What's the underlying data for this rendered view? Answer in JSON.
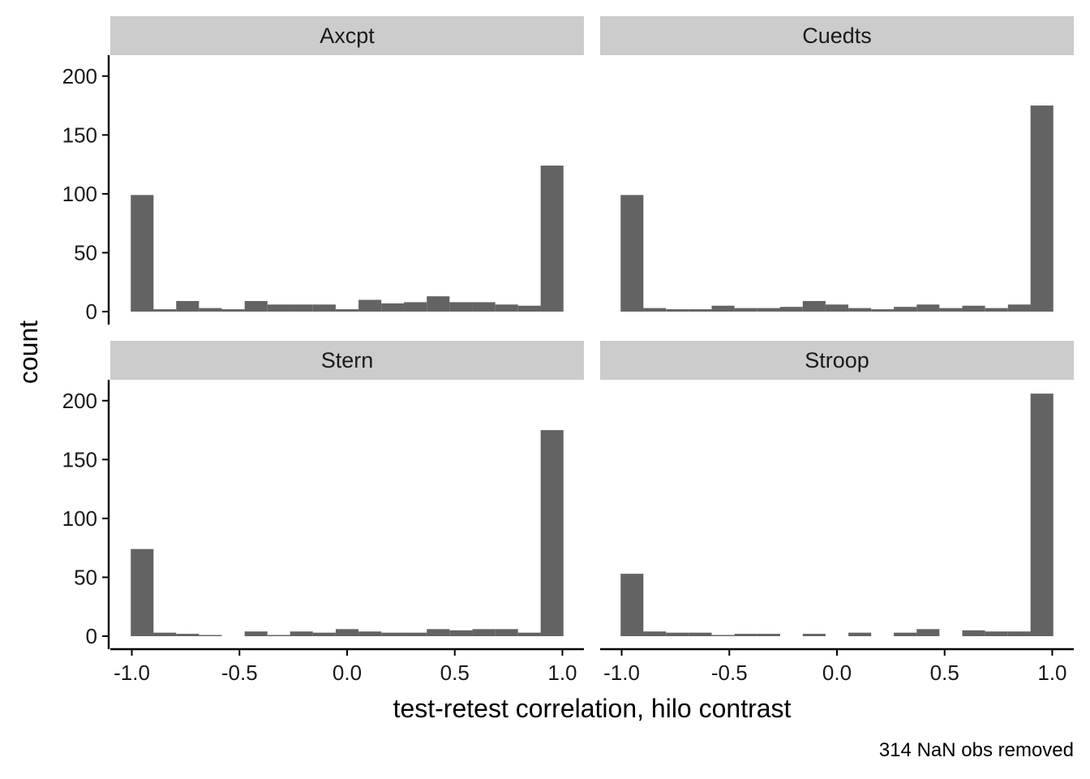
{
  "chart_data": {
    "type": "bar",
    "subtype": "faceted-histogram",
    "xlabel": "test-retest correlation, hilo contrast",
    "ylabel": "count",
    "caption": "314 NaN obs removed",
    "xlim": [
      -1.1,
      1.1
    ],
    "ylim": [
      0,
      215
    ],
    "x_ticks": [
      -1.0,
      -0.5,
      0.0,
      0.5,
      1.0
    ],
    "x_tick_labels": [
      "-1.0",
      "-0.5",
      "0.0",
      "0.5",
      "1.0"
    ],
    "y_ticks": [
      0,
      50,
      100,
      150,
      200
    ],
    "y_tick_labels": [
      "0",
      "50",
      "100",
      "150",
      "200"
    ],
    "bin_centers": [
      -0.952,
      -0.847,
      -0.741,
      -0.635,
      -0.529,
      -0.423,
      -0.317,
      -0.212,
      -0.106,
      0.0,
      0.106,
      0.212,
      0.317,
      0.423,
      0.529,
      0.635,
      0.741,
      0.847,
      0.952
    ],
    "bin_width": 0.1058,
    "grid": false,
    "bar_color": "#636363",
    "strip_fill": "#cccccc",
    "facets": [
      {
        "name": "Axcpt",
        "values": [
          99,
          2,
          9,
          3,
          2,
          9,
          6,
          6,
          6,
          2,
          10,
          7,
          8,
          13,
          8,
          8,
          6,
          5,
          124
        ]
      },
      {
        "name": "Cuedts",
        "values": [
          99,
          3,
          2,
          2,
          5,
          3,
          3,
          4,
          9,
          6,
          3,
          2,
          4,
          6,
          3,
          5,
          3,
          6,
          175
        ]
      },
      {
        "name": "Stern",
        "values": [
          74,
          3,
          2,
          1,
          0,
          4,
          1,
          4,
          3,
          6,
          4,
          3,
          3,
          6,
          5,
          6,
          6,
          3,
          175
        ]
      },
      {
        "name": "Stroop",
        "values": [
          53,
          4,
          3,
          3,
          1,
          2,
          2,
          0,
          2,
          0,
          3,
          0,
          3,
          6,
          0,
          5,
          4,
          4,
          206
        ]
      }
    ]
  }
}
